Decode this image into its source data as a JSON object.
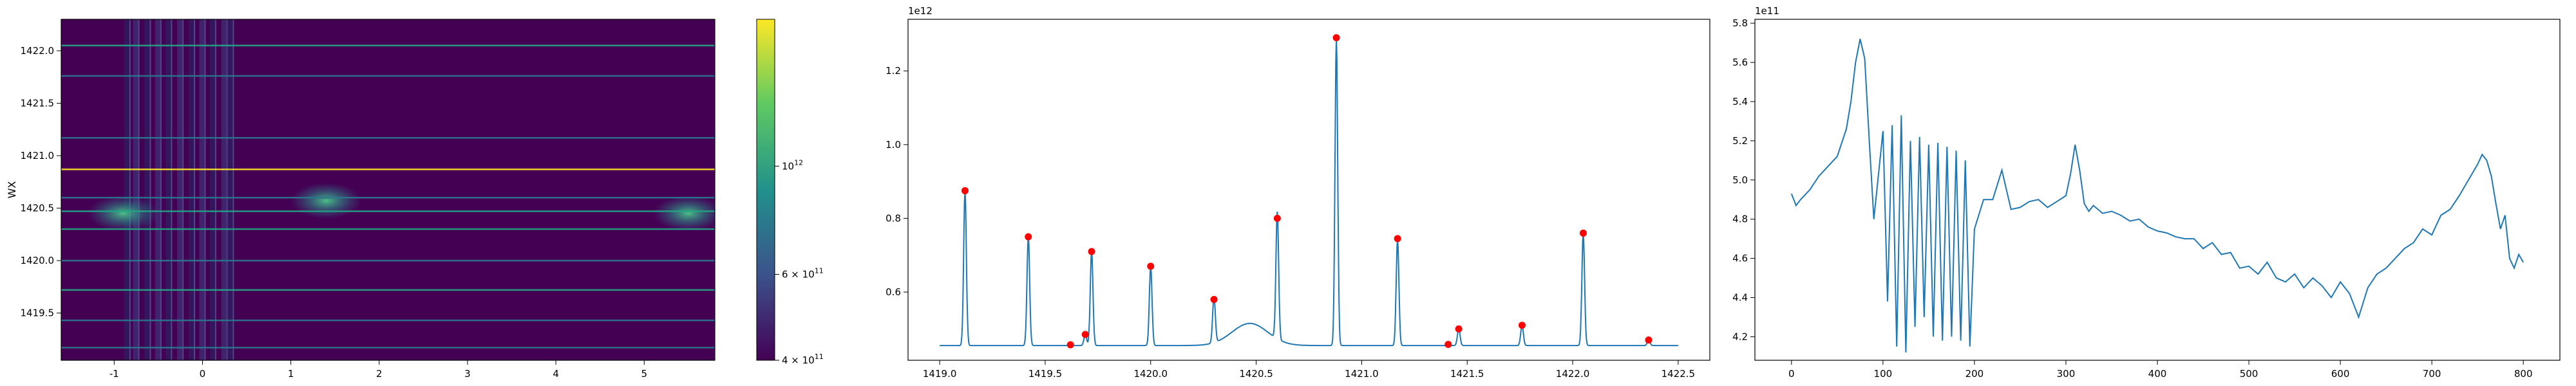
{
  "colors": {
    "line": "#1f77b4",
    "peak_marker": "#ff0000",
    "heatmap_background": "#440154",
    "heatmap_lines": [
      "#2a788e",
      "#22a884",
      "#fde725"
    ],
    "colorbar": [
      "#440154",
      "#3b528b",
      "#21918c",
      "#5ec962",
      "#fde725"
    ]
  },
  "chart_data": [
    {
      "type": "heatmap",
      "title": "",
      "xlabel": "",
      "ylabel": "WX",
      "xlim": [
        -1.6,
        5.8
      ],
      "ylim": [
        1419.05,
        1422.3
      ],
      "x_ticks": [
        "-1",
        "0",
        "1",
        "2",
        "3",
        "4",
        "5"
      ],
      "x_tick_values": [
        -1,
        0,
        1,
        2,
        3,
        4,
        5
      ],
      "y_ticks": [
        "1419.5",
        "1420.0",
        "1420.5",
        "1421.0",
        "1421.5",
        "1422.0"
      ],
      "y_tick_values": [
        1419.5,
        1420.0,
        1420.5,
        1421.0,
        1421.5,
        1422.0
      ],
      "horizontal_lines_at": [
        1419.17,
        1419.43,
        1419.72,
        1420.0,
        1420.3,
        1420.47,
        1420.6,
        1420.87,
        1421.17,
        1421.76,
        1422.05
      ],
      "vertical_stripes_x": [
        -0.85,
        -0.75,
        -0.62,
        -0.5,
        -0.38,
        -0.25,
        -0.12,
        0.0,
        0.12,
        0.25,
        0.32
      ],
      "bright_spots": [
        {
          "x": -0.9,
          "y": 1420.45
        },
        {
          "x": 1.4,
          "y": 1420.57
        },
        {
          "x": 5.5,
          "y": 1420.45
        }
      ],
      "colorbar": {
        "scale": "log",
        "range": [
          400000000000,
          2000000000000
        ],
        "ticks": [
          "4 × 10",
          "6 × 10",
          "10"
        ],
        "tick_exponents": [
          "11",
          "11",
          "12"
        ],
        "tick_values": [
          400000000000,
          600000000000,
          1000000000000
        ]
      }
    },
    {
      "type": "line",
      "title": "",
      "xlabel": "",
      "ylabel": "",
      "offset_text": "1e12",
      "xlim": [
        1418.85,
        1422.65
      ],
      "ylim": [
        0.415,
        1.34
      ],
      "x_ticks": [
        "1419.0",
        "1419.5",
        "1420.0",
        "1420.5",
        "1421.0",
        "1421.5",
        "1422.0",
        "1422.5"
      ],
      "x_tick_values": [
        1419.0,
        1419.5,
        1420.0,
        1420.5,
        1421.0,
        1421.5,
        1422.0,
        1422.5
      ],
      "y_ticks": [
        "0.6",
        "0.8",
        "1.0",
        "1.2"
      ],
      "y_tick_values": [
        0.6,
        0.8,
        1.0,
        1.2
      ],
      "baseline": 0.455,
      "broad_bump": {
        "center": 1420.47,
        "height": 0.06,
        "width": 0.12
      },
      "peaks": [
        {
          "x": 1419.12,
          "y": 0.875
        },
        {
          "x": 1419.42,
          "y": 0.75
        },
        {
          "x": 1419.62,
          "y": 0.457
        },
        {
          "x": 1419.69,
          "y": 0.485
        },
        {
          "x": 1419.72,
          "y": 0.71
        },
        {
          "x": 1420.0,
          "y": 0.67
        },
        {
          "x": 1420.3,
          "y": 0.58
        },
        {
          "x": 1420.6,
          "y": 0.8
        },
        {
          "x": 1420.88,
          "y": 1.29
        },
        {
          "x": 1421.17,
          "y": 0.745
        },
        {
          "x": 1421.41,
          "y": 0.458
        },
        {
          "x": 1421.46,
          "y": 0.5
        },
        {
          "x": 1421.76,
          "y": 0.51
        },
        {
          "x": 1422.05,
          "y": 0.76
        },
        {
          "x": 1422.36,
          "y": 0.47
        }
      ]
    },
    {
      "type": "line",
      "title": "",
      "xlabel": "",
      "ylabel": "",
      "offset_text": "1e11",
      "xlim": [
        -40,
        840
      ],
      "ylim": [
        4.08,
        5.82
      ],
      "x_ticks": [
        "0",
        "100",
        "200",
        "300",
        "400",
        "500",
        "600",
        "700",
        "800"
      ],
      "x_tick_values": [
        0,
        100,
        200,
        300,
        400,
        500,
        600,
        700,
        800
      ],
      "y_ticks": [
        "4.2",
        "4.4",
        "4.6",
        "4.8",
        "5.0",
        "5.2",
        "5.4",
        "5.6",
        "5.8"
      ],
      "y_tick_values": [
        4.2,
        4.4,
        4.6,
        4.8,
        5.0,
        5.2,
        5.4,
        5.6,
        5.8
      ],
      "x": [
        0,
        5,
        10,
        20,
        30,
        40,
        50,
        60,
        65,
        70,
        75,
        80,
        85,
        90,
        100,
        105,
        110,
        115,
        120,
        125,
        130,
        135,
        140,
        145,
        150,
        155,
        160,
        165,
        170,
        175,
        180,
        185,
        190,
        195,
        200,
        210,
        220,
        230,
        240,
        250,
        260,
        270,
        280,
        290,
        300,
        305,
        310,
        315,
        320,
        325,
        330,
        340,
        350,
        360,
        370,
        380,
        390,
        400,
        410,
        420,
        430,
        440,
        450,
        460,
        470,
        480,
        490,
        500,
        510,
        520,
        530,
        540,
        550,
        560,
        570,
        580,
        590,
        600,
        610,
        620,
        630,
        640,
        650,
        660,
        670,
        680,
        690,
        700,
        710,
        720,
        730,
        740,
        750,
        755,
        760,
        765,
        770,
        775,
        780,
        785,
        790,
        795,
        800
      ],
      "y": [
        4.93,
        4.87,
        4.9,
        4.95,
        5.02,
        5.07,
        5.12,
        5.26,
        5.4,
        5.6,
        5.72,
        5.62,
        5.2,
        4.8,
        5.25,
        4.38,
        5.28,
        4.15,
        5.33,
        4.12,
        5.2,
        4.25,
        5.22,
        4.3,
        5.18,
        4.2,
        5.19,
        4.18,
        5.17,
        4.2,
        5.15,
        4.18,
        5.1,
        4.15,
        4.75,
        4.9,
        4.9,
        5.05,
        4.85,
        4.86,
        4.89,
        4.9,
        4.86,
        4.89,
        4.92,
        5.03,
        5.18,
        5.05,
        4.88,
        4.84,
        4.87,
        4.83,
        4.84,
        4.82,
        4.79,
        4.8,
        4.76,
        4.74,
        4.73,
        4.71,
        4.7,
        4.7,
        4.65,
        4.68,
        4.62,
        4.63,
        4.55,
        4.56,
        4.52,
        4.58,
        4.5,
        4.48,
        4.52,
        4.45,
        4.5,
        4.46,
        4.4,
        4.48,
        4.42,
        4.3,
        4.45,
        4.52,
        4.55,
        4.6,
        4.65,
        4.68,
        4.75,
        4.72,
        4.82,
        4.85,
        4.92,
        5.0,
        5.08,
        5.13,
        5.1,
        5.02,
        4.88,
        4.75,
        4.82,
        4.6,
        4.55,
        4.62,
        4.58
      ]
    }
  ]
}
